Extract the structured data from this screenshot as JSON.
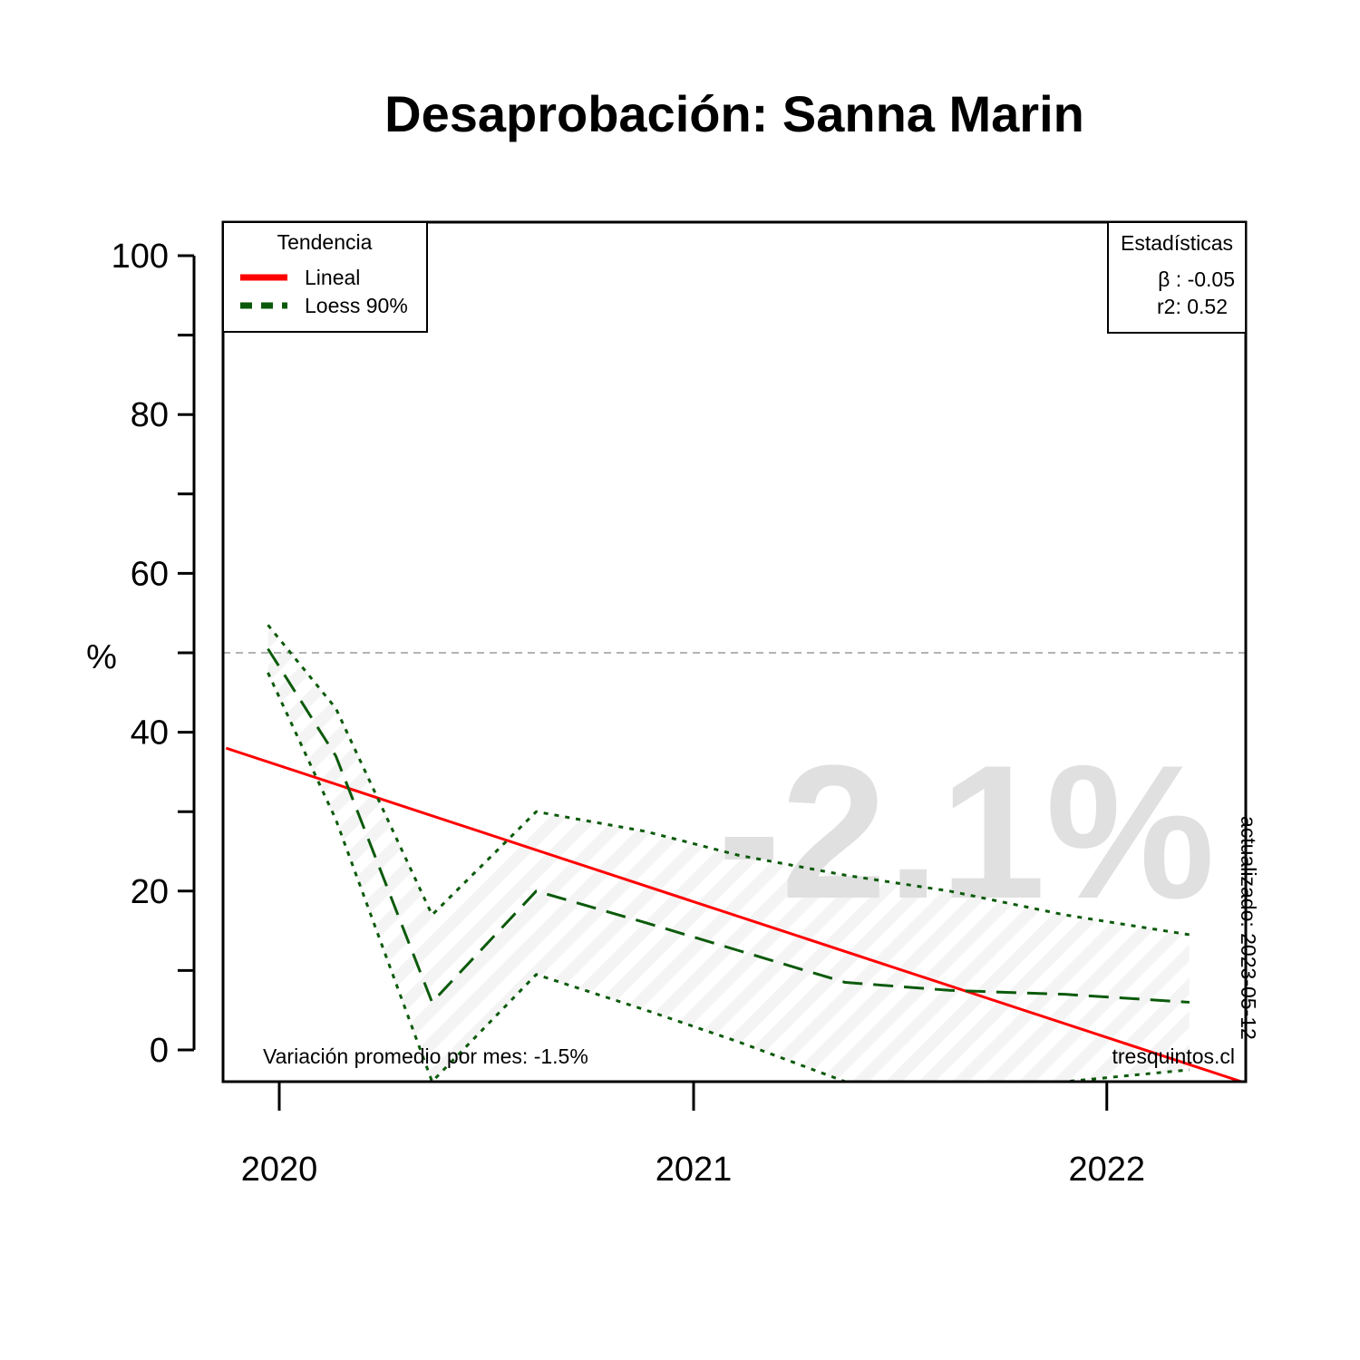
{
  "title": "Desaprobación: Sanna Marin",
  "chart_data": {
    "type": "line",
    "title": "Desaprobación: Sanna Marin",
    "ylabel": "%",
    "xlabel": "",
    "ylim": [
      0,
      100
    ],
    "yticks": [
      0,
      20,
      40,
      60,
      80,
      100
    ],
    "xticks": [
      "2020",
      "2021",
      "2022"
    ],
    "reference_line": 50,
    "series": [
      {
        "name": "Lineal",
        "color": "#ff0000",
        "style": "solid",
        "x": [
          "2019-11-15",
          "2022-04-30"
        ],
        "values": [
          38,
          -4
        ]
      },
      {
        "name": "Loess 90%",
        "color": "#0b5a0b",
        "style": "dashed",
        "x": [
          "2019-12-22",
          "2020-02-20",
          "2020-05-15",
          "2020-08-15",
          "2020-11-20",
          "2021-02-10",
          "2021-05-15",
          "2021-08-15",
          "2021-11-25",
          "2022-03-15"
        ],
        "values": [
          50.5,
          37,
          6,
          20,
          16,
          12.5,
          8.5,
          7.5,
          7,
          6
        ]
      },
      {
        "name": "upper",
        "color": "#0b5a0b",
        "style": "dotted",
        "x": [
          "2019-12-22",
          "2020-02-20",
          "2020-05-15",
          "2020-08-15",
          "2020-11-20",
          "2021-02-10",
          "2021-05-15",
          "2021-08-15",
          "2021-11-25",
          "2022-03-15"
        ],
        "values": [
          53.5,
          43,
          17,
          30,
          27.5,
          24.5,
          22,
          20,
          17,
          14.5
        ]
      },
      {
        "name": "lower",
        "color": "#0b5a0b",
        "style": "dotted",
        "x": [
          "2019-12-22",
          "2020-02-20",
          "2020-05-15",
          "2020-08-15",
          "2020-11-20",
          "2021-02-10",
          "2021-05-15",
          "2021-08-15",
          "2021-11-25",
          "2022-03-15"
        ],
        "values": [
          47.5,
          29,
          -4,
          9.5,
          5,
          1,
          -4,
          -4,
          -4,
          -2.5
        ]
      }
    ],
    "legend": {
      "title": "Tendencia",
      "position": "top-left",
      "entries": [
        "Lineal",
        "Loess 90%"
      ]
    },
    "stats_box": {
      "title": "Estadísticas",
      "position": "top-right",
      "beta": "β : -0.05",
      "r2": "r2: 0.52"
    },
    "big_text": "-2.1%",
    "bottom_left_note": "Variación promedio por mes: -1.5%",
    "bottom_right_note": "tresquintos.cl",
    "side_note": "actualizado: 2023-05-12"
  }
}
